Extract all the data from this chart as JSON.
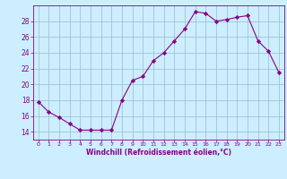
{
  "x": [
    0,
    1,
    2,
    3,
    4,
    5,
    6,
    7,
    8,
    9,
    10,
    11,
    12,
    13,
    14,
    15,
    16,
    17,
    18,
    19,
    20,
    21,
    22,
    23
  ],
  "y": [
    17.8,
    16.5,
    15.8,
    15.0,
    14.2,
    14.2,
    14.2,
    14.2,
    18.0,
    20.5,
    21.0,
    23.0,
    24.0,
    25.5,
    27.0,
    29.2,
    29.0,
    28.0,
    28.2,
    28.5,
    28.7,
    25.5,
    24.2,
    21.5
  ],
  "line_color": "#880088",
  "marker": "D",
  "marker_size": 2.2,
  "bg_color": "#cceeff",
  "grid_color": "#99bbcc",
  "xlabel": "Windchill (Refroidissement éolien,°C)",
  "xlabel_color": "#880088",
  "tick_color": "#880088",
  "ylim": [
    13.0,
    30.0
  ],
  "yticks": [
    14,
    16,
    18,
    20,
    22,
    24,
    26,
    28
  ],
  "xlim": [
    -0.5,
    23.5
  ],
  "xticks": [
    0,
    1,
    2,
    3,
    4,
    5,
    6,
    7,
    8,
    9,
    10,
    11,
    12,
    13,
    14,
    15,
    16,
    17,
    18,
    19,
    20,
    21,
    22,
    23
  ]
}
